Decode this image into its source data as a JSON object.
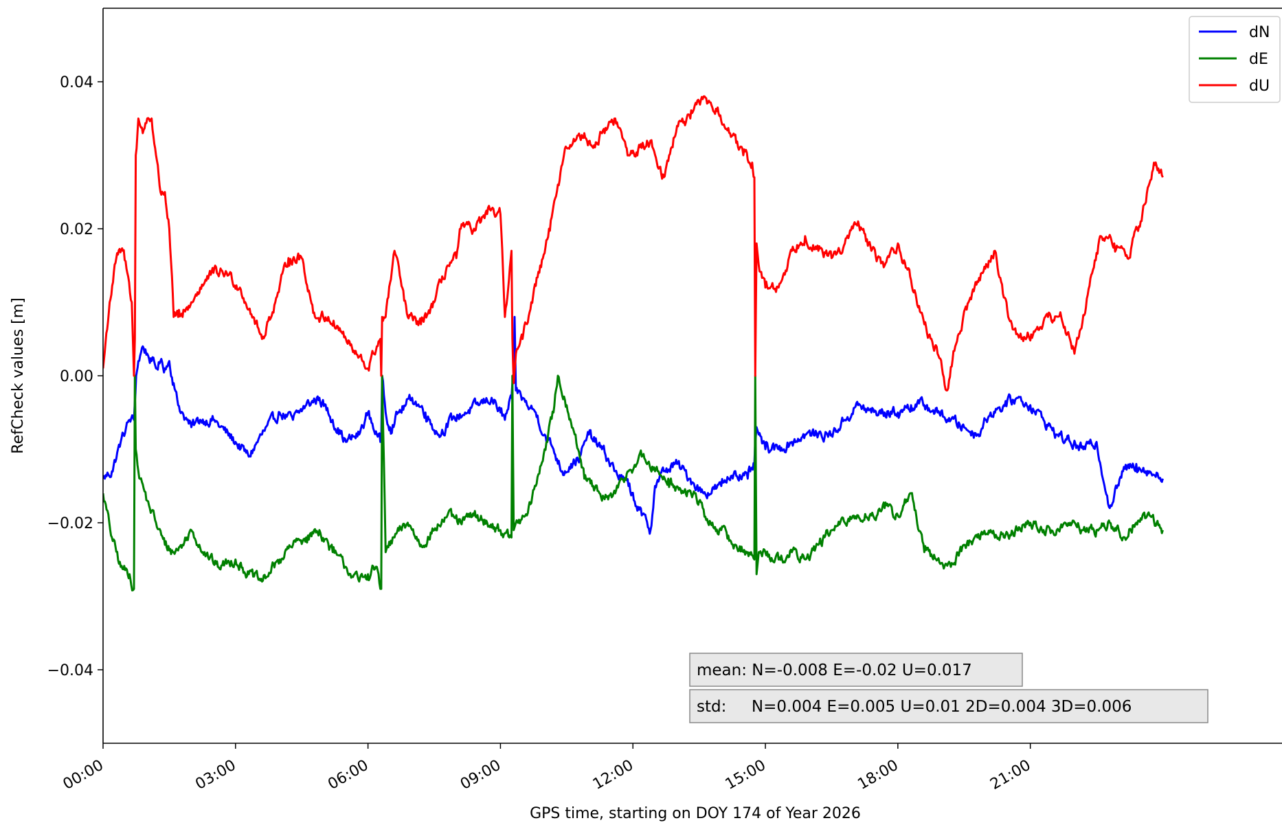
{
  "chart_data": {
    "type": "line",
    "xlabel": "GPS time, starting on DOY 174 of Year 2026",
    "ylabel": "RefCheck values [m]",
    "xlim": [
      0,
      26.7
    ],
    "ylim": [
      -0.05,
      0.05
    ],
    "x_tick_values": [
      0,
      3,
      6,
      9,
      12,
      15,
      18,
      21
    ],
    "x_tick_labels": [
      "00:00",
      "03:00",
      "06:00",
      "09:00",
      "12:00",
      "15:00",
      "18:00",
      "21:00"
    ],
    "y_tick_values": [
      -0.04,
      -0.02,
      0.0,
      0.02,
      0.04
    ],
    "y_tick_labels": [
      "−0.04",
      "−0.02",
      "0.00",
      "0.02",
      "0.04"
    ],
    "legend_position": "top-right",
    "series": [
      {
        "name": "dN",
        "color": "#0000ff",
        "x": [
          0.0,
          0.2,
          0.4,
          0.6,
          0.7,
          0.75,
          0.8,
          0.9,
          1.0,
          1.1,
          1.2,
          1.3,
          1.4,
          1.5,
          1.6,
          1.7,
          1.8,
          1.9,
          2.0,
          2.2,
          2.5,
          3.0,
          3.3,
          3.6,
          4.0,
          4.3,
          4.6,
          4.9,
          5.2,
          5.5,
          5.8,
          6.0,
          6.2,
          6.28,
          6.3,
          6.32,
          6.4,
          6.5,
          6.7,
          7.0,
          7.3,
          7.6,
          7.9,
          8.2,
          8.5,
          8.8,
          9.0,
          9.1,
          9.25,
          9.3,
          9.32,
          9.35,
          9.5,
          9.6,
          9.8,
          10.0,
          10.2,
          10.4,
          10.6,
          10.8,
          11.0,
          11.3,
          11.6,
          11.9,
          12.2,
          12.4,
          12.5,
          12.7,
          13.0,
          13.3,
          13.6,
          14.0,
          14.3,
          14.6,
          14.75,
          14.8,
          14.85,
          15.0,
          15.3,
          15.6,
          15.9,
          16.2,
          16.5,
          16.8,
          17.1,
          17.4,
          17.7,
          18.0,
          18.3,
          18.6,
          18.9,
          19.2,
          19.5,
          19.8,
          20.1,
          20.4,
          20.7,
          21.0,
          21.3,
          21.6,
          21.9,
          22.2,
          22.5,
          22.8,
          23.1,
          23.4,
          23.7,
          24.0
        ],
        "y": [
          -0.014,
          -0.013,
          -0.009,
          -0.006,
          -0.006,
          0.0,
          0.002,
          0.004,
          0.003,
          0.002,
          0.001,
          0.002,
          0.001,
          0.002,
          -0.001,
          -0.004,
          -0.005,
          -0.006,
          -0.007,
          -0.006,
          -0.006,
          -0.009,
          -0.011,
          -0.008,
          -0.005,
          -0.006,
          -0.004,
          -0.003,
          -0.006,
          -0.009,
          -0.008,
          -0.005,
          -0.008,
          -0.009,
          -0.009,
          0.0,
          -0.005,
          -0.007,
          -0.005,
          -0.003,
          -0.005,
          -0.008,
          -0.006,
          -0.005,
          -0.004,
          -0.003,
          -0.005,
          -0.006,
          -0.003,
          -0.001,
          0.008,
          -0.002,
          -0.003,
          -0.004,
          -0.005,
          -0.008,
          -0.01,
          -0.013,
          -0.012,
          -0.011,
          -0.008,
          -0.01,
          -0.013,
          -0.015,
          -0.019,
          -0.021,
          -0.015,
          -0.013,
          -0.012,
          -0.014,
          -0.016,
          -0.015,
          -0.013,
          -0.014,
          -0.012,
          -0.007,
          -0.008,
          -0.01,
          -0.01,
          -0.009,
          -0.008,
          -0.008,
          -0.008,
          -0.006,
          -0.004,
          -0.005,
          -0.005,
          -0.005,
          -0.004,
          -0.004,
          -0.005,
          -0.006,
          -0.007,
          -0.008,
          -0.005,
          -0.004,
          -0.003,
          -0.004,
          -0.006,
          -0.008,
          -0.009,
          -0.01,
          -0.009,
          -0.018,
          -0.013,
          -0.012,
          -0.013,
          -0.014
        ],
        "noise_amplitude": 0.0012
      },
      {
        "name": "dE",
        "color": "#008000",
        "x": [
          0.0,
          0.2,
          0.4,
          0.6,
          0.7,
          0.72,
          0.74,
          0.8,
          1.0,
          1.2,
          1.4,
          1.6,
          1.8,
          2.0,
          2.3,
          2.6,
          3.0,
          3.3,
          3.6,
          4.0,
          4.3,
          4.6,
          4.9,
          5.2,
          5.5,
          5.8,
          6.0,
          6.2,
          6.28,
          6.3,
          6.32,
          6.4,
          6.6,
          6.9,
          7.2,
          7.5,
          7.8,
          8.1,
          8.4,
          8.7,
          9.0,
          9.2,
          9.25,
          9.27,
          9.3,
          9.35,
          9.4,
          9.6,
          9.8,
          10.0,
          10.2,
          10.3,
          10.5,
          10.7,
          10.9,
          11.1,
          11.3,
          11.6,
          11.9,
          12.2,
          12.5,
          12.8,
          13.1,
          13.4,
          13.7,
          14.0,
          14.3,
          14.6,
          14.75,
          14.77,
          14.8,
          14.85,
          15.0,
          15.3,
          15.6,
          15.9,
          16.2,
          16.5,
          16.8,
          17.1,
          17.4,
          17.7,
          18.0,
          18.3,
          18.6,
          18.9,
          19.2,
          19.5,
          19.8,
          20.1,
          20.4,
          20.7,
          21.0,
          21.3,
          21.6,
          21.9,
          22.2,
          22.5,
          22.8,
          23.1,
          23.4,
          23.7,
          24.0
        ],
        "y": [
          -0.016,
          -0.022,
          -0.026,
          -0.027,
          -0.029,
          0.0,
          -0.01,
          -0.013,
          -0.017,
          -0.02,
          -0.023,
          -0.024,
          -0.023,
          -0.021,
          -0.024,
          -0.026,
          -0.025,
          -0.027,
          -0.028,
          -0.025,
          -0.023,
          -0.022,
          -0.021,
          -0.024,
          -0.026,
          -0.028,
          -0.027,
          -0.026,
          -0.029,
          -0.029,
          0.0,
          -0.024,
          -0.022,
          -0.02,
          -0.023,
          -0.021,
          -0.019,
          -0.02,
          -0.019,
          -0.02,
          -0.021,
          -0.022,
          -0.022,
          0.0,
          -0.021,
          -0.02,
          -0.02,
          -0.019,
          -0.015,
          -0.01,
          -0.005,
          -0.0,
          -0.004,
          -0.008,
          -0.014,
          -0.015,
          -0.017,
          -0.016,
          -0.013,
          -0.011,
          -0.013,
          -0.014,
          -0.016,
          -0.016,
          -0.02,
          -0.021,
          -0.023,
          -0.024,
          -0.025,
          0.0,
          -0.027,
          -0.024,
          -0.024,
          -0.025,
          -0.024,
          -0.025,
          -0.023,
          -0.021,
          -0.02,
          -0.019,
          -0.019,
          -0.018,
          -0.019,
          -0.016,
          -0.024,
          -0.025,
          -0.026,
          -0.023,
          -0.022,
          -0.021,
          -0.022,
          -0.021,
          -0.02,
          -0.021,
          -0.021,
          -0.02,
          -0.021,
          -0.021,
          -0.02,
          -0.022,
          -0.02,
          -0.019,
          -0.021
        ],
        "noise_amplitude": 0.0012
      },
      {
        "name": "dU",
        "color": "#ff0000",
        "x": [
          0.0,
          0.15,
          0.3,
          0.45,
          0.55,
          0.65,
          0.7,
          0.72,
          0.74,
          0.8,
          0.9,
          1.0,
          1.1,
          1.2,
          1.3,
          1.4,
          1.5,
          1.6,
          1.7,
          1.8,
          2.0,
          2.2,
          2.5,
          2.8,
          3.1,
          3.4,
          3.6,
          3.9,
          4.2,
          4.5,
          4.8,
          5.1,
          5.4,
          5.7,
          6.0,
          6.2,
          6.28,
          6.3,
          6.32,
          6.4,
          6.6,
          6.9,
          7.2,
          7.5,
          7.8,
          8.0,
          8.1,
          8.4,
          8.7,
          9.0,
          9.1,
          9.25,
          9.27,
          9.3,
          9.35,
          9.5,
          9.7,
          9.9,
          10.1,
          10.3,
          10.5,
          10.7,
          10.9,
          11.1,
          11.3,
          11.6,
          11.9,
          12.2,
          12.4,
          12.7,
          13.0,
          13.3,
          13.6,
          13.9,
          14.2,
          14.5,
          14.7,
          14.75,
          14.77,
          14.8,
          14.85,
          15.0,
          15.3,
          15.6,
          15.9,
          16.2,
          16.5,
          16.8,
          17.1,
          17.4,
          17.7,
          18.0,
          18.3,
          18.6,
          18.9,
          19.1,
          19.3,
          19.6,
          19.9,
          20.2,
          20.5,
          20.8,
          21.1,
          21.4,
          21.7,
          22.0,
          22.3,
          22.6,
          22.9,
          23.2,
          23.5,
          23.8,
          24.0
        ],
        "y": [
          0.001,
          0.01,
          0.016,
          0.017,
          0.014,
          0.01,
          0.0,
          0.005,
          0.03,
          0.035,
          0.033,
          0.035,
          0.035,
          0.03,
          0.025,
          0.025,
          0.02,
          0.008,
          0.008,
          0.008,
          0.01,
          0.012,
          0.014,
          0.014,
          0.012,
          0.008,
          0.005,
          0.01,
          0.016,
          0.016,
          0.008,
          0.008,
          0.006,
          0.003,
          0.001,
          0.004,
          0.005,
          0.0,
          0.008,
          0.008,
          0.017,
          0.008,
          0.007,
          0.01,
          0.015,
          0.016,
          0.02,
          0.02,
          0.022,
          0.022,
          0.008,
          0.017,
          0.005,
          -0.001,
          0.003,
          0.005,
          0.01,
          0.015,
          0.02,
          0.026,
          0.031,
          0.032,
          0.033,
          0.031,
          0.033,
          0.035,
          0.03,
          0.031,
          0.032,
          0.027,
          0.034,
          0.035,
          0.038,
          0.036,
          0.033,
          0.03,
          0.029,
          0.027,
          0.0,
          0.018,
          0.015,
          0.012,
          0.012,
          0.017,
          0.019,
          0.017,
          0.016,
          0.018,
          0.021,
          0.017,
          0.015,
          0.018,
          0.013,
          0.007,
          0.003,
          -0.002,
          0.004,
          0.01,
          0.014,
          0.017,
          0.008,
          0.005,
          0.006,
          0.008,
          0.008,
          0.003,
          0.011,
          0.019,
          0.018,
          0.016,
          0.021,
          0.029,
          0.027
        ],
        "noise_amplitude": 0.0012
      }
    ],
    "stats": {
      "mean": "mean: N=-0.008 E=-0.02 U=0.017",
      "std": "std:     N=0.004 E=0.005 U=0.01 2D=0.004 3D=0.006"
    }
  }
}
